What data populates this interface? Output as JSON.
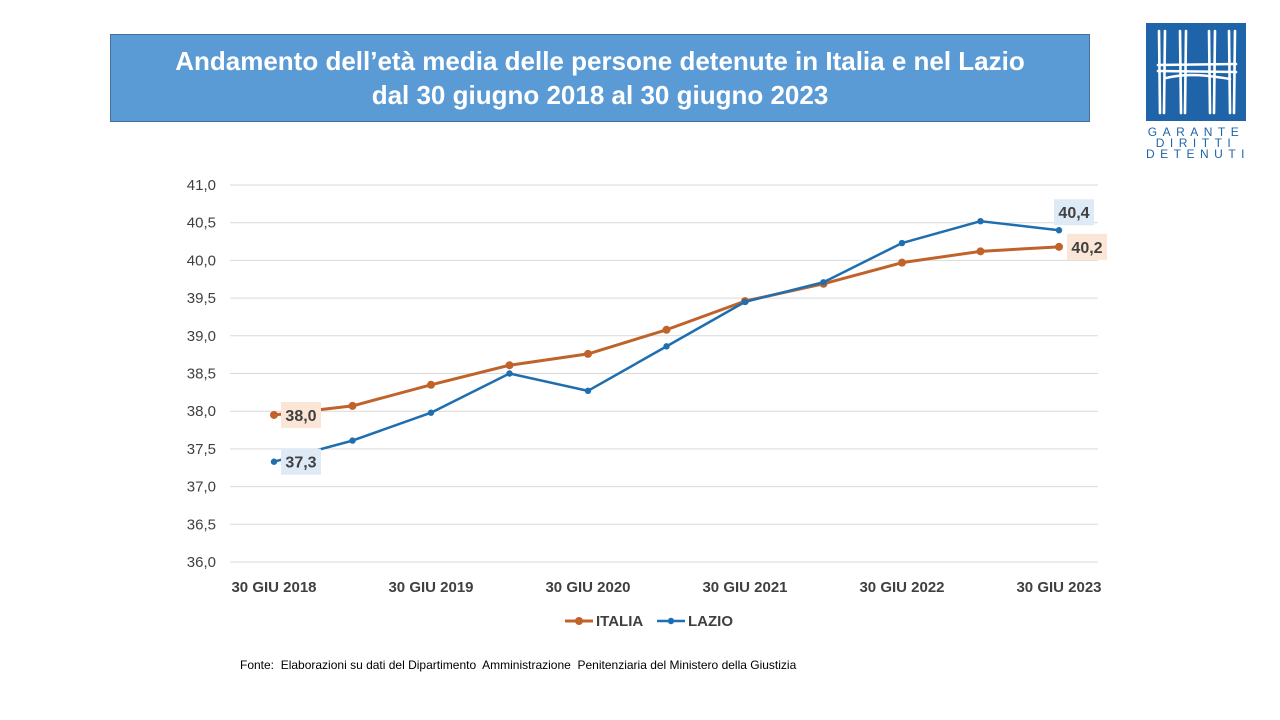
{
  "header": {
    "title_line1": "Andamento dell’età media delle persone detenute in Italia e nel Lazio",
    "title_line2": "dal 30 giugno 2018 al 30 giugno 2023"
  },
  "logo": {
    "line1": "GARANTE",
    "line2": "DIRITTI",
    "line3": "DETENUTI"
  },
  "source_note": "Fonte:  Elaborazioni su dati del Dipartimento  Amministrazione  Penitenziaria del Ministero della Giustizia",
  "colors": {
    "italia": "#c0632a",
    "lazio": "#1f6eb0",
    "title_bg": "#5b9bd5",
    "italia_label_bg": "#fbe5d6",
    "lazio_label_bg": "#deebf7"
  },
  "chart_data": {
    "type": "line",
    "x": [
      "30 GIU 2018",
      "31 DIC 2018",
      "30 GIU 2019",
      "31 DIC 2019",
      "30 GIU 2020",
      "31 DIC 2020",
      "30 GIU 2021",
      "31 DIC 2021",
      "30 GIU 2022",
      "31 DIC 2022",
      "30 GIU 2023"
    ],
    "x_tick_labels": [
      "30 GIU 2018",
      "30 GIU 2019",
      "30 GIU 2020",
      "30 GIU 2021",
      "30 GIU 2022",
      "30 GIU 2023"
    ],
    "y_ticks": [
      "36,0",
      "36,5",
      "37,0",
      "37,5",
      "38,0",
      "38,5",
      "39,0",
      "39,5",
      "40,0",
      "40,5",
      "41,0"
    ],
    "ylim": [
      36.0,
      41.0
    ],
    "grid": true,
    "legend_position": "bottom",
    "series": [
      {
        "name": "ITALIA",
        "values": [
          37.95,
          38.07,
          38.35,
          38.61,
          38.76,
          39.08,
          39.46,
          39.69,
          39.97,
          40.12,
          40.18
        ],
        "start_label": "38,0",
        "end_label": "40,2"
      },
      {
        "name": "LAZIO",
        "values": [
          37.33,
          37.61,
          37.98,
          38.5,
          38.27,
          38.86,
          39.45,
          39.71,
          40.23,
          40.52,
          40.4
        ],
        "start_label": "37,3",
        "end_label": "40,4"
      }
    ]
  }
}
